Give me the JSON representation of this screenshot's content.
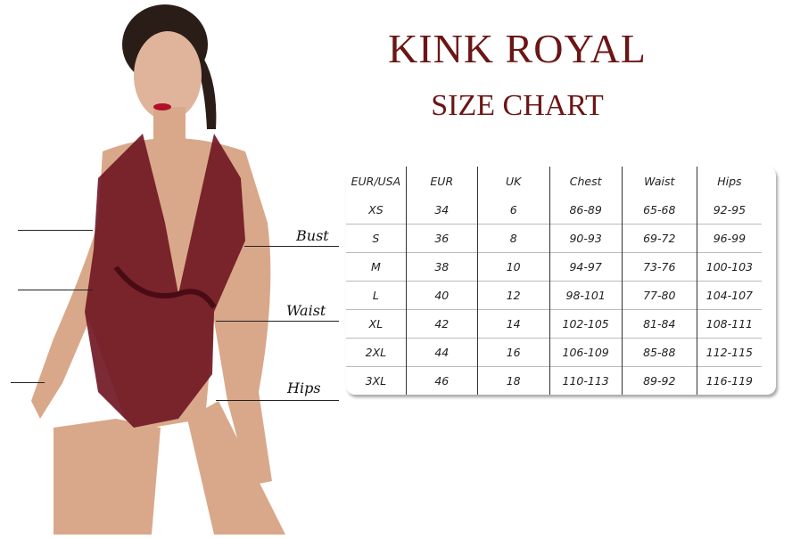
{
  "brand": "KINK ROYAL",
  "subtitle": "SIZE CHART",
  "measure_labels": {
    "bust": "Bust",
    "waist": "Waist",
    "hips": "Hips"
  },
  "colors": {
    "title": "#6b1515",
    "garment": "#6e1420",
    "skin": "#d9a88a"
  },
  "size_table": {
    "headers": [
      "EUR/USA",
      "EUR",
      "UK",
      "Chest",
      "Waist",
      "Hips"
    ],
    "rows": [
      [
        "XS",
        "34",
        "6",
        "86-89",
        "65-68",
        "92-95"
      ],
      [
        "S",
        "36",
        "8",
        "90-93",
        "69-72",
        "96-99"
      ],
      [
        "M",
        "38",
        "10",
        "94-97",
        "73-76",
        "100-103"
      ],
      [
        "L",
        "40",
        "12",
        "98-101",
        "77-80",
        "104-107"
      ],
      [
        "XL",
        "42",
        "14",
        "102-105",
        "81-84",
        "108-111"
      ],
      [
        "2XL",
        "44",
        "16",
        "106-109",
        "85-88",
        "112-115"
      ],
      [
        "3XL",
        "46",
        "18",
        "110-113",
        "89-92",
        "116-119"
      ]
    ]
  }
}
